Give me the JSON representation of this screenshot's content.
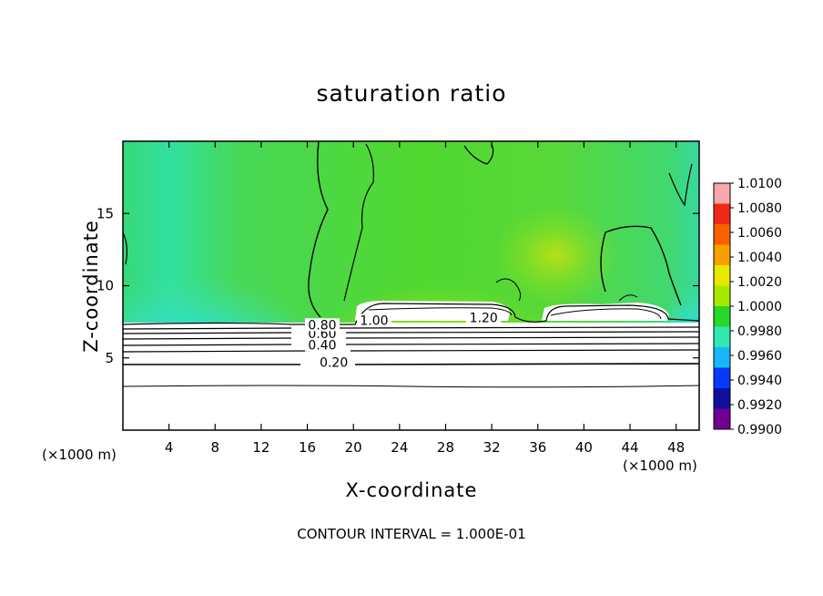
{
  "chart_data": {
    "type": "heatmap",
    "title": "saturation ratio",
    "xlabel": "X-coordinate",
    "ylabel": "Z-coordinate",
    "x_unit": "(×1000 m)",
    "xlim": [
      0,
      50
    ],
    "ylim": [
      0,
      20
    ],
    "x_ticks": [
      4,
      8,
      12,
      16,
      20,
      24,
      28,
      32,
      36,
      40,
      44,
      48
    ],
    "y_ticks": [
      5,
      10,
      15
    ],
    "colorbar": {
      "min": 0.99,
      "max": 1.01,
      "labels": [
        "1.0100",
        "1.0080",
        "1.0060",
        "1.0040",
        "1.0020",
        "1.0000",
        "0.9980",
        "0.9960",
        "0.9940",
        "0.9920",
        "0.9900"
      ],
      "colors": [
        "#f8a8a8",
        "#f02818",
        "#f86000",
        "#f8a000",
        "#e8e800",
        "#a8e800",
        "#28d828",
        "#30e8b0",
        "#18b8f8",
        "#0838f8",
        "#1010a0",
        "#700090"
      ]
    },
    "contour_labels": [
      {
        "label": "0.20",
        "x": 18.3,
        "z": 4.7
      },
      {
        "label": "0.40",
        "x": 17.3,
        "z": 5.9
      },
      {
        "label": "0.60",
        "x": 17.3,
        "z": 6.7
      },
      {
        "label": "0.80",
        "x": 17.3,
        "z": 7.3
      },
      {
        "label": "1.00",
        "x": 21.8,
        "z": 7.6
      },
      {
        "label": "1.20",
        "x": 31.3,
        "z": 7.8
      }
    ],
    "contour_interval_note": "CONTOUR INTERVAL = 1.000E-01"
  }
}
